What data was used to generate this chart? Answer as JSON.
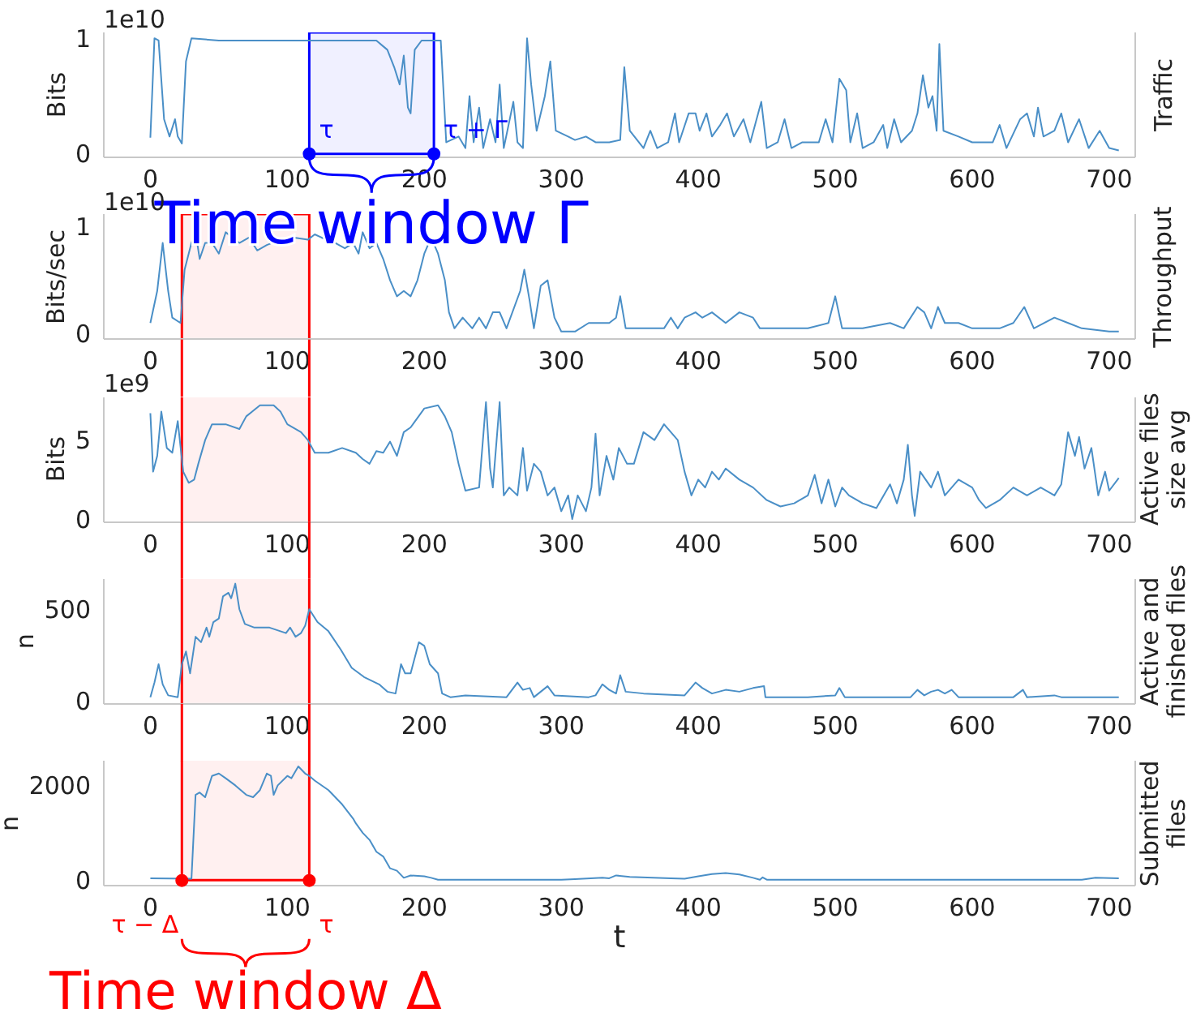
{
  "chart_data": [
    {
      "type": "line",
      "ylabel": "Bits",
      "y2label": "Traffic",
      "color": "#4a8fc7",
      "xlim": [
        -34,
        719
      ],
      "xticks": [
        0,
        100,
        200,
        300,
        400,
        500,
        600,
        700
      ],
      "ylim": [
        -0.03,
        1.05
      ],
      "yticks": [
        0,
        1
      ],
      "annotations": [
        "1e10",
        {
          "text": "τ",
          "x": 116,
          "y": 0
        },
        {
          "text": "τ + Γ",
          "x": 207,
          "y": 0
        }
      ],
      "bands": [
        {
          "axis": "x",
          "from": 116,
          "to": 207,
          "label": "Time window Γ",
          "color": "#0000ff"
        }
      ],
      "x": [
        0,
        3,
        6,
        10,
        14,
        18,
        20,
        23,
        26,
        30,
        50,
        80,
        110,
        140,
        165,
        170,
        173,
        178,
        182,
        185,
        188,
        190,
        193,
        198,
        205,
        212,
        216,
        225,
        230,
        233,
        236,
        240,
        243,
        248,
        252,
        255,
        258,
        265,
        268,
        272,
        275,
        278,
        282,
        288,
        292,
        296,
        305,
        310,
        318,
        325,
        335,
        343,
        346,
        350,
        360,
        365,
        370,
        378,
        383,
        386,
        393,
        398,
        401,
        406,
        410,
        416,
        421,
        426,
        433,
        438,
        446,
        450,
        458,
        463,
        468,
        476,
        488,
        493,
        498,
        503,
        508,
        511,
        516,
        520,
        528,
        535,
        538,
        543,
        548,
        556,
        560,
        564,
        568,
        571,
        574,
        576,
        579,
        590,
        600,
        615,
        620,
        625,
        635,
        640,
        645,
        648,
        652,
        660,
        665,
        670,
        678,
        685,
        693,
        700,
        707
      ],
      "values": [
        0.14,
        1.0,
        0.98,
        0.3,
        0.15,
        0.3,
        0.15,
        0.09,
        0.8,
        1.0,
        0.98,
        0.98,
        0.98,
        0.98,
        0.98,
        0.93,
        0.9,
        0.75,
        0.6,
        0.85,
        0.4,
        0.35,
        0.9,
        0.98,
        0.98,
        0.98,
        0.1,
        0.15,
        0.05,
        0.5,
        0.1,
        0.4,
        0.05,
        0.3,
        0.1,
        0.6,
        0.05,
        0.45,
        0.1,
        0.05,
        1.0,
        0.6,
        0.2,
        0.5,
        0.8,
        0.2,
        0.15,
        0.12,
        0.15,
        0.1,
        0.1,
        0.12,
        0.75,
        0.2,
        0.05,
        0.2,
        0.05,
        0.1,
        0.35,
        0.1,
        0.35,
        0.35,
        0.2,
        0.35,
        0.15,
        0.25,
        0.35,
        0.15,
        0.3,
        0.1,
        0.45,
        0.05,
        0.1,
        0.3,
        0.05,
        0.1,
        0.1,
        0.3,
        0.1,
        0.65,
        0.55,
        0.1,
        0.35,
        0.05,
        0.1,
        0.25,
        0.05,
        0.3,
        0.1,
        0.2,
        0.35,
        0.68,
        0.4,
        0.5,
        0.2,
        0.95,
        0.2,
        0.15,
        0.1,
        0.1,
        0.25,
        0.05,
        0.3,
        0.35,
        0.15,
        0.4,
        0.15,
        0.2,
        0.35,
        0.1,
        0.3,
        0.05,
        0.2,
        0.05,
        0.03
      ]
    },
    {
      "type": "line",
      "ylabel": "Bits/sec",
      "y2label": "Throughput",
      "color": "#4a8fc7",
      "xlim": [
        -34,
        719
      ],
      "xticks": [
        0,
        100,
        200,
        300,
        400,
        500,
        600,
        700
      ],
      "ylim": [
        -0.05,
        1.12
      ],
      "yticks": [
        0,
        1
      ],
      "annotations": [
        "1e10"
      ],
      "bands": [
        {
          "axis": "x",
          "from": 23,
          "to": 116,
          "color": "#ff0000"
        }
      ],
      "x": [
        0,
        5,
        9,
        13,
        16,
        22,
        25,
        30,
        33,
        36,
        40,
        45,
        50,
        55,
        60,
        65,
        72,
        78,
        85,
        95,
        105,
        115,
        120,
        125,
        135,
        142,
        148,
        152,
        155,
        160,
        165,
        170,
        175,
        180,
        185,
        190,
        195,
        200,
        205,
        210,
        215,
        218,
        222,
        228,
        235,
        240,
        245,
        250,
        255,
        260,
        270,
        273,
        277,
        280,
        285,
        290,
        295,
        300,
        310,
        320,
        335,
        340,
        343,
        347,
        360,
        375,
        380,
        385,
        390,
        398,
        403,
        410,
        420,
        430,
        440,
        445,
        460,
        480,
        495,
        500,
        505,
        520,
        540,
        550,
        560,
        565,
        570,
        575,
        580,
        590,
        600,
        620,
        630,
        638,
        645,
        660,
        670,
        680,
        700,
        707
      ],
      "values": [
        0.1,
        0.4,
        0.85,
        0.4,
        0.15,
        0.1,
        0.6,
        0.85,
        0.95,
        0.7,
        0.85,
        0.85,
        0.75,
        0.95,
        0.9,
        0.85,
        0.9,
        0.78,
        0.83,
        0.88,
        0.9,
        0.88,
        0.93,
        0.9,
        0.85,
        0.8,
        0.85,
        0.75,
        0.95,
        0.8,
        0.85,
        0.7,
        0.5,
        0.35,
        0.4,
        0.35,
        0.5,
        0.75,
        0.9,
        0.75,
        0.5,
        0.2,
        0.05,
        0.15,
        0.05,
        0.15,
        0.05,
        0.2,
        0.2,
        0.05,
        0.4,
        0.6,
        0.3,
        0.05,
        0.45,
        0.5,
        0.15,
        0.02,
        0.02,
        0.1,
        0.1,
        0.15,
        0.35,
        0.05,
        0.05,
        0.05,
        0.15,
        0.05,
        0.15,
        0.2,
        0.15,
        0.2,
        0.1,
        0.2,
        0.15,
        0.05,
        0.05,
        0.05,
        0.1,
        0.35,
        0.05,
        0.05,
        0.1,
        0.05,
        0.25,
        0.2,
        0.05,
        0.25,
        0.1,
        0.1,
        0.05,
        0.05,
        0.1,
        0.25,
        0.05,
        0.15,
        0.1,
        0.05,
        0.02,
        0.02
      ]
    },
    {
      "type": "line",
      "ylabel": "Bits",
      "y2label": "Active files\nsize avg",
      "color": "#4a8fc7",
      "xlim": [
        -34,
        719
      ],
      "xticks": [
        0,
        100,
        200,
        300,
        400,
        500,
        600,
        700
      ],
      "ylim": [
        -0.2,
        7.7
      ],
      "yticks": [
        0,
        5
      ],
      "annotations": [
        "1e9"
      ],
      "bands": [
        {
          "axis": "x",
          "from": 23,
          "to": 116,
          "color": "#ff0000"
        }
      ],
      "x": [
        0,
        2,
        5,
        8,
        12,
        16,
        20,
        24,
        28,
        32,
        35,
        40,
        45,
        55,
        65,
        70,
        80,
        90,
        95,
        100,
        110,
        115,
        120,
        130,
        140,
        150,
        155,
        160,
        165,
        170,
        175,
        180,
        185,
        190,
        200,
        210,
        215,
        220,
        225,
        230,
        240,
        245,
        248,
        250,
        255,
        258,
        262,
        268,
        272,
        275,
        280,
        285,
        290,
        295,
        300,
        305,
        308,
        312,
        318,
        322,
        325,
        328,
        333,
        338,
        342,
        348,
        353,
        360,
        368,
        375,
        385,
        390,
        395,
        400,
        405,
        410,
        415,
        420,
        430,
        440,
        450,
        460,
        470,
        480,
        485,
        490,
        495,
        500,
        505,
        510,
        520,
        530,
        540,
        545,
        550,
        553,
        556,
        558,
        562,
        570,
        575,
        580,
        590,
        600,
        605,
        610,
        620,
        630,
        640,
        650,
        660,
        665,
        670,
        675,
        678,
        682,
        687,
        692,
        697,
        700,
        707
      ],
      "values": [
        6.7,
        3.0,
        4.0,
        6.8,
        4.5,
        4.2,
        6.2,
        3.0,
        2.3,
        2.5,
        3.5,
        5.0,
        6.0,
        6.0,
        5.7,
        6.5,
        7.2,
        7.2,
        6.8,
        6.0,
        5.5,
        5.0,
        4.2,
        4.2,
        4.5,
        4.2,
        3.8,
        3.5,
        4.3,
        4.2,
        4.9,
        4.0,
        5.5,
        5.8,
        7.0,
        7.2,
        6.5,
        5.5,
        3.5,
        1.8,
        2.0,
        7.4,
        3.2,
        2.0,
        7.4,
        1.5,
        2.0,
        1.5,
        4.5,
        1.8,
        3.5,
        3.0,
        1.5,
        2.0,
        0.5,
        1.5,
        0.0,
        1.5,
        0.5,
        2.0,
        5.4,
        1.5,
        4.0,
        2.5,
        4.5,
        3.5,
        3.5,
        5.5,
        5.0,
        6.0,
        5.0,
        3.0,
        1.5,
        2.5,
        2.0,
        3.0,
        2.5,
        3.2,
        2.5,
        2.0,
        1.2,
        0.8,
        1.0,
        1.5,
        2.8,
        1.0,
        2.5,
        0.8,
        2.0,
        1.5,
        1.0,
        0.7,
        2.2,
        1.0,
        2.5,
        4.7,
        1.5,
        0.2,
        3.0,
        2.0,
        3.0,
        1.5,
        2.5,
        2.0,
        1.2,
        0.7,
        1.2,
        2.0,
        1.5,
        2.0,
        1.5,
        2.2,
        5.5,
        4.0,
        5.2,
        3.2,
        4.5,
        1.5,
        3.0,
        1.8,
        2.6
      ]
    },
    {
      "type": "line",
      "ylabel": "n",
      "y2label": "Active and\nfinished files",
      "color": "#4a8fc7",
      "xlim": [
        -34,
        719
      ],
      "xticks": [
        0,
        100,
        200,
        300,
        400,
        500,
        600,
        700
      ],
      "ylim": [
        -17,
        665
      ],
      "yticks": [
        0,
        500
      ],
      "bands": [
        {
          "axis": "x",
          "from": 23,
          "to": 116,
          "color": "#ff0000"
        }
      ],
      "x": [
        0,
        3,
        6,
        9,
        13,
        20,
        23,
        26,
        29,
        33,
        37,
        41,
        43,
        46,
        50,
        53,
        57,
        59,
        62,
        65,
        69,
        76,
        87,
        99,
        102,
        106,
        110,
        113,
        116,
        122,
        130,
        139,
        147,
        156,
        167,
        173,
        179,
        183,
        186,
        190,
        196,
        200,
        204,
        210,
        213,
        219,
        230,
        260,
        268,
        272,
        277,
        280,
        290,
        295,
        320,
        325,
        330,
        335,
        340,
        343,
        347,
        360,
        390,
        398,
        403,
        410,
        420,
        430,
        440,
        448,
        449,
        480,
        500,
        503,
        507,
        530,
        555,
        560,
        565,
        570,
        575,
        580,
        585,
        590,
        610,
        630,
        637,
        640,
        660,
        665,
        700,
        707
      ],
      "values": [
        20,
        100,
        200,
        90,
        30,
        20,
        200,
        270,
        150,
        350,
        320,
        400,
        350,
        430,
        450,
        570,
        590,
        560,
        640,
        500,
        420,
        400,
        400,
        370,
        400,
        350,
        370,
        410,
        500,
        430,
        380,
        280,
        180,
        130,
        90,
        50,
        40,
        200,
        150,
        150,
        320,
        300,
        200,
        150,
        40,
        20,
        30,
        20,
        100,
        60,
        70,
        20,
        80,
        30,
        20,
        30,
        90,
        60,
        40,
        140,
        50,
        40,
        30,
        100,
        70,
        40,
        60,
        50,
        70,
        80,
        20,
        20,
        30,
        70,
        20,
        20,
        20,
        60,
        30,
        50,
        60,
        40,
        60,
        20,
        20,
        20,
        60,
        20,
        30,
        20,
        20,
        20
      ]
    },
    {
      "type": "line",
      "ylabel": "n",
      "y2label": "Submitted\nfiles",
      "xlabel": "t",
      "color": "#4a8fc7",
      "xlim": [
        -34,
        719
      ],
      "xticks": [
        0,
        100,
        200,
        300,
        400,
        500,
        600,
        700
      ],
      "ylim": [
        -115,
        2520
      ],
      "yticks": [
        0,
        2000
      ],
      "annotations": [
        {
          "text": "τ − Δ",
          "x": 23,
          "y": 0
        },
        {
          "text": "τ",
          "x": 116,
          "y": 0
        }
      ],
      "bands": [
        {
          "axis": "x",
          "from": 23,
          "to": 116,
          "label": "Time window Δ",
          "color": "#ff0000"
        }
      ],
      "x": [
        0,
        30,
        33,
        36,
        40,
        45,
        50,
        55,
        62,
        70,
        75,
        80,
        85,
        88,
        90,
        93,
        100,
        103,
        108,
        113,
        116,
        120,
        130,
        140,
        148,
        150,
        155,
        160,
        165,
        170,
        175,
        180,
        185,
        190,
        200,
        205,
        210,
        300,
        310,
        330,
        335,
        340,
        350,
        380,
        390,
        400,
        410,
        420,
        430,
        440,
        445,
        447,
        450,
        680,
        690,
        707
      ],
      "values": [
        40,
        30,
        1800,
        1850,
        1750,
        2200,
        2250,
        2150,
        2000,
        1800,
        1750,
        1900,
        2250,
        2200,
        1800,
        2000,
        2200,
        2150,
        2400,
        2250,
        2200,
        2100,
        1900,
        1600,
        1300,
        1200,
        1000,
        850,
        600,
        500,
        250,
        200,
        50,
        100,
        80,
        50,
        10,
        10,
        20,
        50,
        40,
        100,
        70,
        40,
        30,
        80,
        130,
        150,
        120,
        50,
        10,
        60,
        10,
        10,
        50,
        40
      ]
    }
  ]
}
